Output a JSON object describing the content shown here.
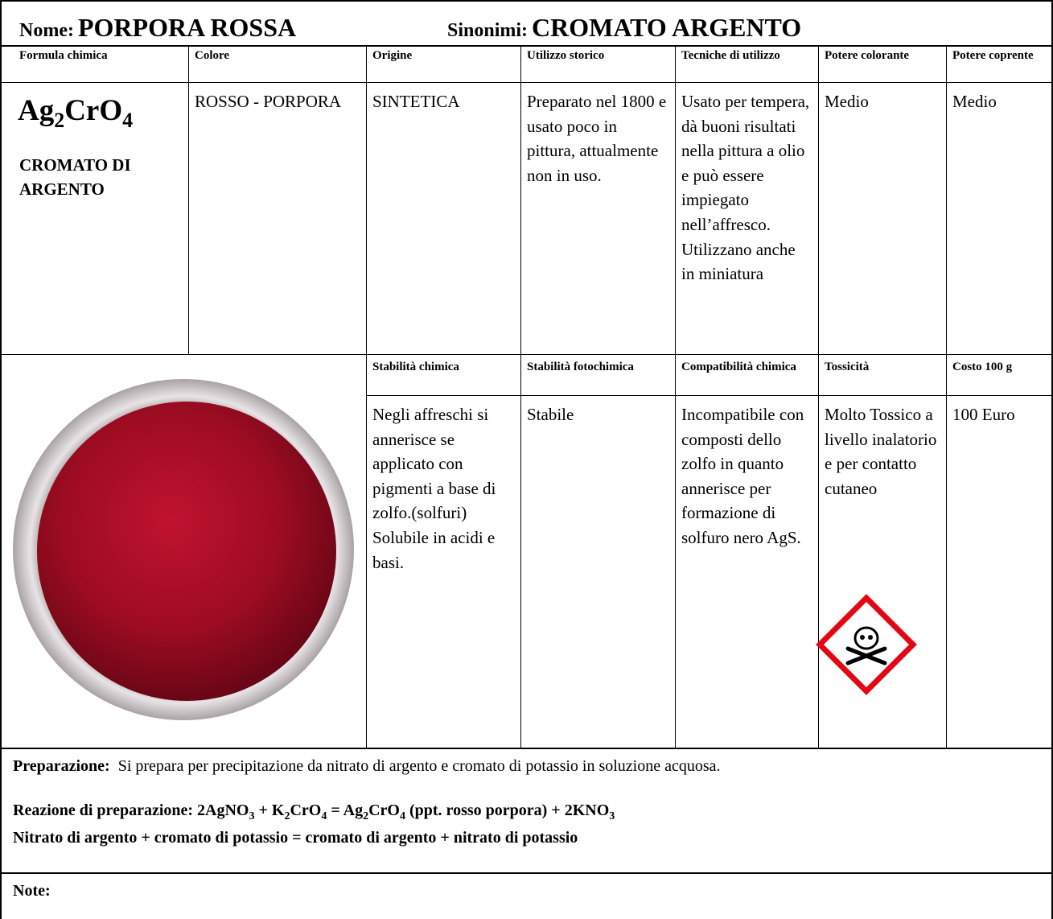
{
  "header": {
    "name_label": "Nome:",
    "name": "PORPORA ROSSA",
    "synonyms_label": "Sinonimi:",
    "synonyms": "CROMATO ARGENTO"
  },
  "table": {
    "headers1": [
      "Formula chimica",
      "Colore",
      "Origine",
      "Utilizzo storico",
      "Tecniche di utilizzo",
      "Potere colorante",
      "Potere coprente"
    ],
    "formula": [
      {
        "text": "Ag"
      },
      {
        "sub": "2"
      },
      {
        "text": "CrO"
      },
      {
        "sub": "4"
      }
    ],
    "formula_name": "CROMATO DI ARGENTO",
    "row1": [
      "ROSSO - PORPORA",
      "SINTETICA",
      "Preparato nel 1800 e usato poco in pittura, attualmente non in uso.",
      "Usato per tempera, dà buoni risultati nella pittura a olio e può essere impiegato nell’affresco. Utilizzano anche in miniatura",
      "Medio",
      "Medio"
    ],
    "headers2": [
      "Stabilità chimica",
      "Stabilità fotochimica",
      "Compatibilità chimica",
      "Tossicità",
      "Costo 100 g"
    ],
    "row2": [
      "Negli affreschi si annerisce se applicato con pigmenti a base di zolfo.(solfuri) Solubile in acidi e basi.",
      "Stabile",
      "Incompatibile con composti dello zolfo in quanto annerisce per formazione di solfuro nero AgS.",
      "Molto Tossico a livello inalatorio e per contatto cutaneo",
      "100 Euro"
    ]
  },
  "preparation": {
    "label": "Preparazione:",
    "text": "Si prepara per precipitazione da nitrato di argento e cromato di potassio in soluzione acquosa."
  },
  "reaction": {
    "label": "Reazione di preparazione:",
    "equation": [
      {
        "text": "2AgNO"
      },
      {
        "sub": "3"
      },
      {
        "text": " + K"
      },
      {
        "sub": "2"
      },
      {
        "text": "CrO"
      },
      {
        "sub": "4"
      },
      {
        "text": " = Ag"
      },
      {
        "sub": "2"
      },
      {
        "text": "CrO"
      },
      {
        "sub": "4"
      },
      {
        "text": " (ppt. rosso porpora) + 2KNO"
      },
      {
        "sub": "3"
      }
    ],
    "words": "Nitrato di argento + cromato di potassio = cromato di argento + nitrato di potassio"
  },
  "notes": {
    "label": "Note:"
  }
}
